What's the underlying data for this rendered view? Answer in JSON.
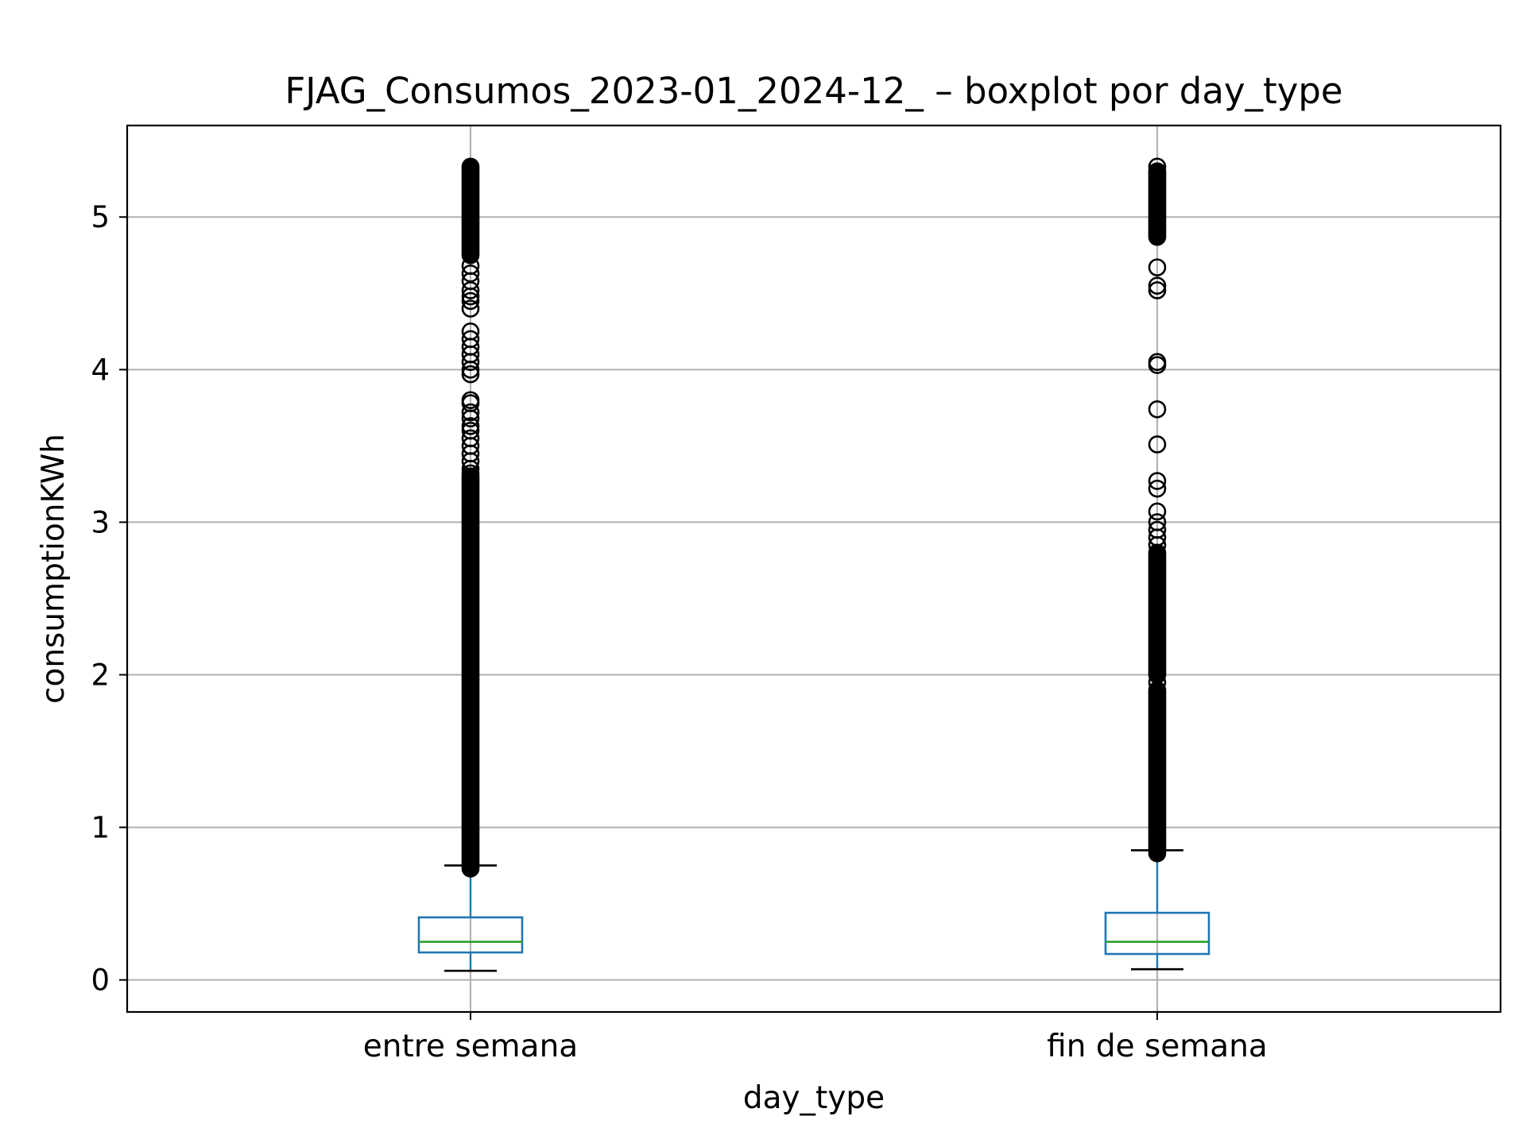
{
  "chart_data": {
    "type": "boxplot",
    "title": "FJAG_Consumos_2023-01_2024-12_ – boxplot por day_type",
    "xlabel": "day_type",
    "ylabel": "consumptionKWh",
    "ylim": [
      -0.21,
      5.6
    ],
    "yticks": [
      0,
      1,
      2,
      3,
      4,
      5
    ],
    "grid": true,
    "categories": [
      "entre semana",
      "fin de semana"
    ],
    "boxes": [
      {
        "category": "entre semana",
        "whisker_low": 0.06,
        "q1": 0.18,
        "median": 0.25,
        "q3": 0.41,
        "whisker_high": 0.75,
        "outlier_dense_ranges": [
          [
            0.73,
            3.3
          ],
          [
            4.75,
            5.33
          ]
        ],
        "outliers": [
          3.32,
          3.35,
          3.4,
          3.45,
          3.5,
          3.55,
          3.6,
          3.63,
          3.68,
          3.72,
          3.78,
          3.8,
          3.97,
          4.0,
          4.05,
          4.1,
          4.15,
          4.2,
          4.25,
          4.4,
          4.45,
          4.48,
          4.52,
          4.58,
          4.63,
          4.68
        ]
      },
      {
        "category": "fin de semana",
        "whisker_low": 0.07,
        "q1": 0.17,
        "median": 0.25,
        "q3": 0.44,
        "whisker_high": 0.85,
        "outlier_dense_ranges": [
          [
            0.83,
            1.9
          ],
          [
            2.0,
            2.8
          ],
          [
            4.87,
            5.3
          ]
        ],
        "outliers": [
          1.95,
          2.85,
          2.9,
          2.95,
          3.0,
          3.07,
          3.22,
          3.27,
          3.51,
          3.74,
          4.03,
          4.05,
          4.52,
          4.55,
          4.67,
          5.33
        ]
      }
    ],
    "colors": {
      "box": "#1f77b4",
      "median": "#2ca02c",
      "whisker_cap": "#000000",
      "flier": "#000000",
      "grid": "#b0b0b0"
    }
  }
}
